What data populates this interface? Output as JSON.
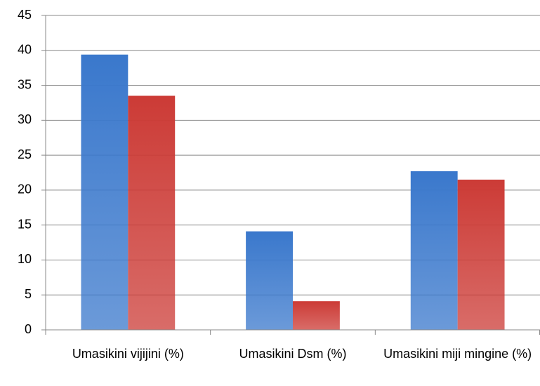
{
  "chart_data": {
    "type": "bar",
    "categories": [
      "Umasikini vijijini (%)",
      "Umasikini Dsm (%)",
      "Umasikini miji mingine (%)"
    ],
    "series": [
      {
        "color": "#3a78cc",
        "values": [
          39.4,
          14.1,
          22.7
        ]
      },
      {
        "color": "#cc3b36",
        "values": [
          33.5,
          4.1,
          21.5
        ]
      }
    ],
    "ylim": [
      0,
      45
    ],
    "yticks": [
      0,
      5,
      10,
      15,
      20,
      25,
      30,
      35,
      40,
      45
    ],
    "grid": true
  }
}
